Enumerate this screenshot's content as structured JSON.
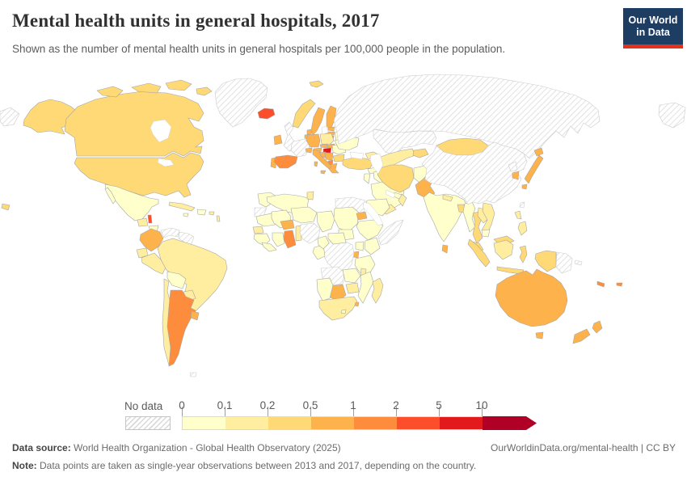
{
  "page": {
    "title": "Mental health units in general hospitals, 2017",
    "subtitle": "Shown as the number of mental health units in general hospitals per 100,000 people in the population."
  },
  "logo": {
    "line1": "Our World",
    "line2": "in Data",
    "bg_color": "#1d3d63",
    "accent_color": "#e0321f"
  },
  "legend": {
    "no_data_label": "No data",
    "ticks": [
      "0",
      "0.1",
      "0.2",
      "0.5",
      "1",
      "2",
      "5",
      "10"
    ],
    "colors": [
      "#ffffcc",
      "#ffeda0",
      "#fed976",
      "#feb24c",
      "#fd8d3c",
      "#fc4e2a",
      "#e31a1c",
      "#b10026"
    ]
  },
  "footer": {
    "source_label": "Data source:",
    "source_text": " World Health Organization - Global Health Observatory (2025)",
    "link_text": "OurWorldinData.org/mental-health | CC BY",
    "note_label": "Note:",
    "note_text": " Data points are taken as single-year observations between 2013 and 2017, depending on the country."
  },
  "chart_data": {
    "type": "heatmap",
    "subtype": "choropleth-world-map",
    "title": "Mental health units in general hospitals, 2017",
    "unit": "mental health units in general hospitals per 100,000 people",
    "band_ranges": [
      "0-0.1",
      "0.1-0.2",
      "0.2-0.5",
      "0.5-1",
      "1-2",
      "2-5",
      "5-10",
      "10+"
    ],
    "regions": [
      {
        "id": "alaska",
        "name": "United States (Alaska)",
        "band": 2
      },
      {
        "id": "canada",
        "name": "Canada",
        "band": 2
      },
      {
        "id": "canada-arctic",
        "name": "Canada (Arctic islands)",
        "band": 2
      },
      {
        "id": "usa",
        "name": "United States",
        "band": 2
      },
      {
        "id": "hawaii",
        "name": "United States (Hawaii)",
        "band": 2
      },
      {
        "id": "mexico",
        "name": "Mexico",
        "band": 0
      },
      {
        "id": "guatemala",
        "name": "Guatemala",
        "band": 1
      },
      {
        "id": "belize",
        "name": "Belize",
        "band": 5
      },
      {
        "id": "honduras",
        "name": "Honduras",
        "band": 0
      },
      {
        "id": "nicaragua",
        "name": "Nicaragua",
        "band": 1
      },
      {
        "id": "costa-rica",
        "name": "Costa Rica",
        "band": 1
      },
      {
        "id": "panama",
        "name": "Panama",
        "band": 3
      },
      {
        "id": "cuba",
        "name": "Cuba",
        "band": 1
      },
      {
        "id": "jamaica",
        "name": "Jamaica",
        "band": 0
      },
      {
        "id": "hispaniola",
        "name": "Haiti / Dominican Republic",
        "band": 0
      },
      {
        "id": "puerto-rico",
        "name": "Puerto Rico",
        "band": 1
      },
      {
        "id": "lesser-antilles",
        "name": "Lesser Antilles",
        "band": 1
      },
      {
        "id": "greenland",
        "name": "Greenland",
        "band": "nodata"
      },
      {
        "id": "colombia",
        "name": "Colombia",
        "band": 3
      },
      {
        "id": "venezuela",
        "name": "Venezuela",
        "band": "nodata"
      },
      {
        "id": "guyanas",
        "name": "Guyana / Suriname / French Guiana",
        "band": "nodata"
      },
      {
        "id": "ecuador",
        "name": "Ecuador",
        "band": 1
      },
      {
        "id": "peru",
        "name": "Peru",
        "band": 1
      },
      {
        "id": "brazil",
        "name": "Brazil",
        "band": 1
      },
      {
        "id": "bolivia",
        "name": "Bolivia",
        "band": 0
      },
      {
        "id": "paraguay",
        "name": "Paraguay",
        "band": 1
      },
      {
        "id": "chile",
        "name": "Chile",
        "band": 1
      },
      {
        "id": "argentina",
        "name": "Argentina",
        "band": 4
      },
      {
        "id": "uruguay",
        "name": "Uruguay",
        "band": 3
      },
      {
        "id": "falklands",
        "name": "Falkland Islands",
        "band": "nodata"
      },
      {
        "id": "iceland",
        "name": "Iceland",
        "band": 5
      },
      {
        "id": "ireland",
        "name": "Ireland",
        "band": 3
      },
      {
        "id": "uk",
        "name": "United Kingdom",
        "band": "nodata"
      },
      {
        "id": "portugal",
        "name": "Portugal",
        "band": 3
      },
      {
        "id": "spain",
        "name": "Spain",
        "band": 4
      },
      {
        "id": "france",
        "name": "France",
        "band": "nodata"
      },
      {
        "id": "belgium-netherlands",
        "name": "Belgium / Netherlands",
        "band": 3
      },
      {
        "id": "germany",
        "name": "Germany",
        "band": 3
      },
      {
        "id": "denmark",
        "name": "Denmark",
        "band": 3
      },
      {
        "id": "norway",
        "name": "Norway",
        "band": 2
      },
      {
        "id": "sweden",
        "name": "Sweden",
        "band": 3
      },
      {
        "id": "finland",
        "name": "Finland",
        "band": 3
      },
      {
        "id": "svalbard",
        "name": "Svalbard",
        "band": 2
      },
      {
        "id": "estonia",
        "name": "Estonia",
        "band": 3
      },
      {
        "id": "latvia",
        "name": "Latvia",
        "band": 3
      },
      {
        "id": "lithuania",
        "name": "Lithuania",
        "band": 4
      },
      {
        "id": "belarus",
        "name": "Belarus",
        "band": 0
      },
      {
        "id": "poland",
        "name": "Poland",
        "band": 1
      },
      {
        "id": "czechia",
        "name": "Czechia",
        "band": 3
      },
      {
        "id": "slovakia",
        "name": "Slovakia",
        "band": 3
      },
      {
        "id": "austria",
        "name": "Austria",
        "band": 3
      },
      {
        "id": "switzerland",
        "name": "Switzerland",
        "band": 3
      },
      {
        "id": "hungary",
        "name": "Hungary",
        "band": 6
      },
      {
        "id": "slovenia-croatia",
        "name": "Slovenia / Croatia",
        "band": 3
      },
      {
        "id": "bosnia-serbia",
        "name": "Bosnia / Serbia",
        "band": 3
      },
      {
        "id": "albania-macedonia",
        "name": "Albania / North Macedonia",
        "band": 4
      },
      {
        "id": "romania",
        "name": "Romania",
        "band": 0
      },
      {
        "id": "bulgaria",
        "name": "Bulgaria",
        "band": 2
      },
      {
        "id": "greece",
        "name": "Greece",
        "band": 3
      },
      {
        "id": "italy",
        "name": "Italy",
        "band": 3
      },
      {
        "id": "ukraine",
        "name": "Ukraine",
        "band": 0
      },
      {
        "id": "russia",
        "name": "Russia",
        "band": "nodata"
      },
      {
        "id": "russia-east",
        "name": "Russia (far east)",
        "band": "nodata"
      },
      {
        "id": "russia-west-tip",
        "name": "Russia (Chukotka wrap)",
        "band": "nodata"
      },
      {
        "id": "kazakhstan",
        "name": "Kazakhstan",
        "band": "nodata"
      },
      {
        "id": "uzbekistan-turkmenistan",
        "name": "Uzbekistan / Turkmenistan",
        "band": 1
      },
      {
        "id": "kyrgyzstan-tajikistan",
        "name": "Kyrgyzstan / Tajikistan",
        "band": 2
      },
      {
        "id": "caucasus",
        "name": "Georgia / Armenia / Azerbaijan",
        "band": 1
      },
      {
        "id": "turkey",
        "name": "Turkey",
        "band": 2
      },
      {
        "id": "syria",
        "name": "Syria",
        "band": 0
      },
      {
        "id": "iraq",
        "name": "Iraq",
        "band": 0
      },
      {
        "id": "israel-jordan",
        "name": "Israel / Jordan",
        "band": 0
      },
      {
        "id": "saudi-arabia",
        "name": "Saudi Arabia",
        "band": 0
      },
      {
        "id": "yemen",
        "name": "Yemen",
        "band": 1
      },
      {
        "id": "oman",
        "name": "Oman",
        "band": 1
      },
      {
        "id": "uae-qatar",
        "name": "UAE / Qatar",
        "band": 0
      },
      {
        "id": "iran",
        "name": "Iran",
        "band": 2
      },
      {
        "id": "afghanistan",
        "name": "Afghanistan",
        "band": 0
      },
      {
        "id": "pakistan",
        "name": "Pakistan",
        "band": 3
      },
      {
        "id": "india",
        "name": "India",
        "band": 0
      },
      {
        "id": "nepal",
        "name": "Nepal",
        "band": 1
      },
      {
        "id": "bangladesh",
        "name": "Bangladesh",
        "band": 2
      },
      {
        "id": "sri-lanka",
        "name": "Sri Lanka",
        "band": 3
      },
      {
        "id": "myanmar",
        "name": "Myanmar",
        "band": 0
      },
      {
        "id": "thailand",
        "name": "Thailand",
        "band": 2
      },
      {
        "id": "laos",
        "name": "Laos",
        "band": 1
      },
      {
        "id": "vietnam",
        "name": "Vietnam",
        "band": 1
      },
      {
        "id": "cambodia",
        "name": "Cambodia",
        "band": 0
      },
      {
        "id": "malaysia",
        "name": "Malaysia",
        "band": 2
      },
      {
        "id": "indonesia-sumatra",
        "name": "Indonesia (Sumatra)",
        "band": 2
      },
      {
        "id": "indonesia-java",
        "name": "Indonesia (Java)",
        "band": 2
      },
      {
        "id": "indonesia-borneo",
        "name": "Borneo",
        "band": 1
      },
      {
        "id": "indonesia-sulawesi",
        "name": "Indonesia (Sulawesi)",
        "band": 2
      },
      {
        "id": "indonesia-papua",
        "name": "Indonesia (Papua)",
        "band": 2
      },
      {
        "id": "png",
        "name": "Papua New Guinea",
        "band": "nodata"
      },
      {
        "id": "solomon",
        "name": "Solomon Islands",
        "band": "nodata"
      },
      {
        "id": "philippines",
        "name": "Philippines",
        "band": 1
      },
      {
        "id": "taiwan",
        "name": "Taiwan",
        "band": "nodata"
      },
      {
        "id": "mongolia",
        "name": "Mongolia",
        "band": 2
      },
      {
        "id": "china",
        "name": "China",
        "band": "nodata"
      },
      {
        "id": "north-korea",
        "name": "North Korea",
        "band": "nodata"
      },
      {
        "id": "south-korea",
        "name": "South Korea",
        "band": 3
      },
      {
        "id": "japan",
        "name": "Japan",
        "band": 3
      },
      {
        "id": "morocco",
        "name": "Morocco",
        "band": 0
      },
      {
        "id": "western-sahara",
        "name": "Western Sahara",
        "band": "nodata"
      },
      {
        "id": "algeria",
        "name": "Algeria",
        "band": 0
      },
      {
        "id": "tunisia",
        "name": "Tunisia",
        "band": 1
      },
      {
        "id": "libya",
        "name": "Libya",
        "band": "nodata"
      },
      {
        "id": "egypt",
        "name": "Egypt",
        "band": 0
      },
      {
        "id": "mauritania",
        "name": "Mauritania",
        "band": 0
      },
      {
        "id": "mali",
        "name": "Mali",
        "band": 0
      },
      {
        "id": "senegal",
        "name": "Senegal / Gambia",
        "band": 1
      },
      {
        "id": "guinea-cluster",
        "name": "Guinea / Guinea-Bissau",
        "band": 0
      },
      {
        "id": "sierra-leone-liberia",
        "name": "Sierra Leone / Liberia",
        "band": 0
      },
      {
        "id": "ivory-coast",
        "name": "Cote d'Ivoire",
        "band": 0
      },
      {
        "id": "ghana",
        "name": "Ghana",
        "band": 4
      },
      {
        "id": "togo-benin",
        "name": "Togo / Benin",
        "band": 1
      },
      {
        "id": "burkina-faso",
        "name": "Burkina Faso",
        "band": 3
      },
      {
        "id": "niger",
        "name": "Niger",
        "band": 0
      },
      {
        "id": "nigeria",
        "name": "Nigeria",
        "band": "nodata"
      },
      {
        "id": "chad",
        "name": "Chad",
        "band": 0
      },
      {
        "id": "sudan",
        "name": "Sudan",
        "band": 0
      },
      {
        "id": "south-sudan",
        "name": "South Sudan",
        "band": 0
      },
      {
        "id": "eritrea",
        "name": "Eritrea",
        "band": 3
      },
      {
        "id": "ethiopia",
        "name": "Ethiopia",
        "band": 0
      },
      {
        "id": "somalia",
        "name": "Somalia",
        "band": "nodata"
      },
      {
        "id": "kenya",
        "name": "Kenya",
        "band": 0
      },
      {
        "id": "uganda",
        "name": "Uganda",
        "band": 0
      },
      {
        "id": "rwanda-burundi",
        "name": "Rwanda / Burundi",
        "band": 3
      },
      {
        "id": "drc",
        "name": "Democratic Republic of Congo",
        "band": "nodata"
      },
      {
        "id": "gabon-congo",
        "name": "Gabon / Congo",
        "band": 0
      },
      {
        "id": "cameroon",
        "name": "Cameroon",
        "band": 0
      },
      {
        "id": "car",
        "name": "Central African Republic",
        "band": 0
      },
      {
        "id": "tanzania",
        "name": "Tanzania",
        "band": 0
      },
      {
        "id": "angola",
        "name": "Angola",
        "band": "nodata"
      },
      {
        "id": "zambia",
        "name": "Zambia",
        "band": 0
      },
      {
        "id": "malawi",
        "name": "Malawi",
        "band": 1
      },
      {
        "id": "mozambique",
        "name": "Mozambique",
        "band": 0
      },
      {
        "id": "zimbabwe",
        "name": "Zimbabwe",
        "band": 1
      },
      {
        "id": "botswana",
        "name": "Botswana",
        "band": 3
      },
      {
        "id": "namibia",
        "name": "Namibia",
        "band": 0
      },
      {
        "id": "south-africa",
        "name": "South Africa",
        "band": 1
      },
      {
        "id": "eswatini",
        "name": "Eswatini",
        "band": 3
      },
      {
        "id": "lesotho",
        "name": "Lesotho",
        "band": 0
      },
      {
        "id": "madagascar",
        "name": "Madagascar",
        "band": 1
      },
      {
        "id": "australia",
        "name": "Australia",
        "band": 3
      },
      {
        "id": "tasmania",
        "name": "Australia (Tasmania)",
        "band": 3
      },
      {
        "id": "new-zealand",
        "name": "New Zealand",
        "band": 3
      },
      {
        "id": "fiji",
        "name": "Fiji",
        "band": 4
      },
      {
        "id": "new-caledonia",
        "name": "New Caledonia",
        "band": 4
      }
    ]
  }
}
